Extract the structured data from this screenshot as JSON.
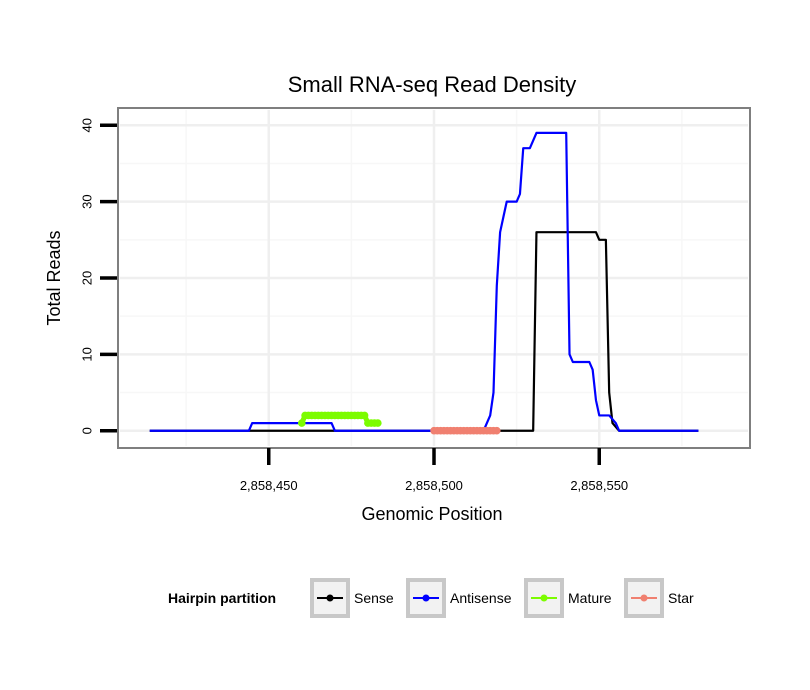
{
  "chart_data": {
    "type": "line",
    "title": "Small RNA-seq Read Density",
    "xlabel": "Genomic Position",
    "ylabel": "Total Reads",
    "xlim": [
      2858405,
      2858595
    ],
    "ylim": [
      -2,
      42
    ],
    "x_ticks": [
      2858450,
      2858500,
      2858550
    ],
    "x_tick_labels": [
      "2,858,450",
      "2,858,500",
      "2,858,550"
    ],
    "y_ticks": [
      0,
      10,
      20,
      30,
      40
    ],
    "y_tick_labels": [
      "0",
      "10",
      "20",
      "30",
      "40"
    ],
    "grid": true,
    "legend": {
      "title": "Hairpin partition",
      "placement": "bottom",
      "entries": [
        "Sense",
        "Antisense",
        "Mature",
        "Star"
      ]
    },
    "series": [
      {
        "name": "Sense",
        "color": "#000000",
        "points": true,
        "x": [
          2858414,
          2858530,
          2858531,
          2858549,
          2858550,
          2858552,
          2858553,
          2858554,
          2858556,
          2858580
        ],
        "y": [
          0,
          0,
          26,
          26,
          25,
          25,
          5,
          1,
          0,
          0
        ]
      },
      {
        "name": "Antisense",
        "color": "#0000ff",
        "points": true,
        "x": [
          2858414,
          2858444,
          2858445,
          2858469,
          2858470,
          2858475,
          2858515,
          2858516,
          2858517,
          2858518,
          2858519,
          2858520,
          2858521,
          2858522,
          2858523,
          2858525,
          2858526,
          2858527,
          2858529,
          2858530,
          2858531,
          2858540,
          2858541,
          2858542,
          2858547,
          2858548,
          2858549,
          2858550,
          2858553,
          2858555,
          2858556,
          2858580
        ],
        "y": [
          0,
          0,
          1,
          1,
          0,
          0,
          0,
          1,
          2,
          5,
          19,
          26,
          28,
          30,
          30,
          30,
          31,
          37,
          37,
          38,
          39,
          39,
          10,
          9,
          9,
          8,
          4,
          2,
          2,
          1,
          0,
          0
        ]
      },
      {
        "name": "Mature",
        "color": "#7cfc00",
        "points": true,
        "x": [
          2858460,
          2858461,
          2858462,
          2858463,
          2858464,
          2858465,
          2858466,
          2858467,
          2858468,
          2858469,
          2858470,
          2858471,
          2858472,
          2858473,
          2858474,
          2858475,
          2858476,
          2858477,
          2858478,
          2858479,
          2858480,
          2858481,
          2858482,
          2858483
        ],
        "y": [
          1,
          2,
          2,
          2,
          2,
          2,
          2,
          2,
          2,
          2,
          2,
          2,
          2,
          2,
          2,
          2,
          2,
          2,
          2,
          2,
          1,
          1,
          1,
          1
        ]
      },
      {
        "name": "Star",
        "color": "#f08070",
        "points": true,
        "x": [
          2858500,
          2858501,
          2858502,
          2858503,
          2858504,
          2858505,
          2858506,
          2858507,
          2858508,
          2858509,
          2858510,
          2858511,
          2858512,
          2858513,
          2858514,
          2858515,
          2858516,
          2858517,
          2858518,
          2858519
        ],
        "y": [
          0,
          0,
          0,
          0,
          0,
          0,
          0,
          0,
          0,
          0,
          0,
          0,
          0,
          0,
          0,
          0,
          0,
          0,
          0,
          0
        ]
      }
    ]
  }
}
